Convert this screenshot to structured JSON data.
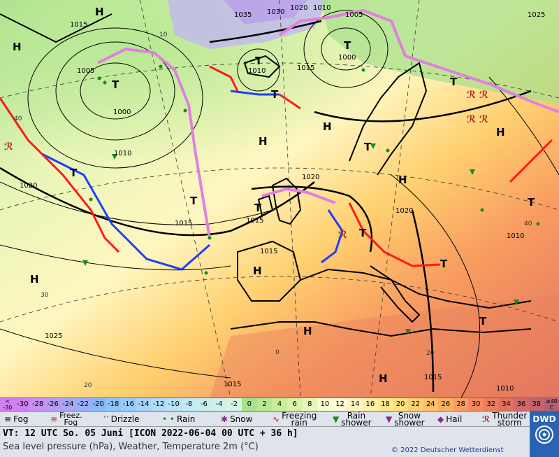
{
  "map": {
    "pressure_labels": [
      "1015",
      "1005",
      "1000",
      "1010",
      "1020",
      "1025",
      "1035",
      "1030",
      "1020",
      "1010",
      "1005",
      "1000",
      "1015",
      "1015",
      "1010",
      "1020",
      "1015",
      "1020",
      "1015",
      "1010",
      "1025",
      "1015",
      "1015",
      "1010"
    ],
    "high_marker": "H",
    "low_marker": "T",
    "temp_isoline_labels": [
      "40",
      "30",
      "20",
      "0",
      "10",
      "20",
      "40"
    ]
  },
  "colors": {
    "frontal_cold": "#1f3fff",
    "frontal_warm": "#ff1a1a",
    "frontal_occluded": "#e080e0",
    "isobar": "#000000"
  },
  "temperature_scale": {
    "low_end_label": [
      "<",
      "-30"
    ],
    "high_end_label": [
      "≥40",
      "C"
    ],
    "cells": [
      {
        "label": "-30",
        "color": "#d080f0"
      },
      {
        "label": "-28",
        "color": "#c890f0"
      },
      {
        "label": "-26",
        "color": "#b89cf4"
      },
      {
        "label": "-24",
        "color": "#a8a8f8"
      },
      {
        "label": "-22",
        "color": "#98b0f8"
      },
      {
        "label": "-20",
        "color": "#88b8fc"
      },
      {
        "label": "-18",
        "color": "#90c4fc"
      },
      {
        "label": "-16",
        "color": "#98ccfc"
      },
      {
        "label": "-14",
        "color": "#a8d4fc"
      },
      {
        "label": "-12",
        "color": "#b0dcfc"
      },
      {
        "label": "-10",
        "color": "#b8e4f8"
      },
      {
        "label": "-8",
        "color": "#c0eaf4"
      },
      {
        "label": "-6",
        "color": "#c8eef0"
      },
      {
        "label": "-4",
        "color": "#d0f0ec"
      },
      {
        "label": "-2",
        "color": "#d8f4e4"
      },
      {
        "label": "0",
        "color": "#a8e08c"
      },
      {
        "label": "2",
        "color": "#b8e894"
      },
      {
        "label": "4",
        "color": "#c8ee9c"
      },
      {
        "label": "6",
        "color": "#d8f2a8"
      },
      {
        "label": "8",
        "color": "#e8f6b8"
      },
      {
        "label": "10",
        "color": "#f8fcd0"
      },
      {
        "label": "12",
        "color": "#fffbd8"
      },
      {
        "label": "14",
        "color": "#fff6c0"
      },
      {
        "label": "16",
        "color": "#fff0a8"
      },
      {
        "label": "18",
        "color": "#ffe890"
      },
      {
        "label": "20",
        "color": "#ffe07c"
      },
      {
        "label": "22",
        "color": "#ffd070"
      },
      {
        "label": "24",
        "color": "#ffc068"
      },
      {
        "label": "26",
        "color": "#fcae64"
      },
      {
        "label": "28",
        "color": "#f89c60"
      },
      {
        "label": "30",
        "color": "#f48a5c"
      },
      {
        "label": "32",
        "color": "#ec7c5c"
      },
      {
        "label": "34",
        "color": "#e07060"
      },
      {
        "label": "36",
        "color": "#d06868"
      },
      {
        "label": "38",
        "color": "#c06470"
      }
    ]
  },
  "legend": {
    "fog": "Fog",
    "freezing_fog": [
      "Freez.",
      "Fog"
    ],
    "drizzle": "Drizzle",
    "rain": "Rain",
    "snow": "Snow",
    "freezing_rain": [
      "Freezing",
      "rain"
    ],
    "rain_shower": [
      "Rain",
      "shower"
    ],
    "snow_shower": [
      "Snow",
      "shower"
    ],
    "hail": "Hail",
    "thunderstorm": [
      "Thunder",
      "storm"
    ]
  },
  "footer": {
    "valid_time": "VT: 12 UTC So.  05 Juni [ICON 2022-06-04  00 UTC + 36 h]",
    "subtitle": "Sea level pressure (hPa), Weather, Temperature 2m (°C)",
    "copyright": "© 2022 Deutscher Wetterdienst",
    "logo": "DWD"
  }
}
